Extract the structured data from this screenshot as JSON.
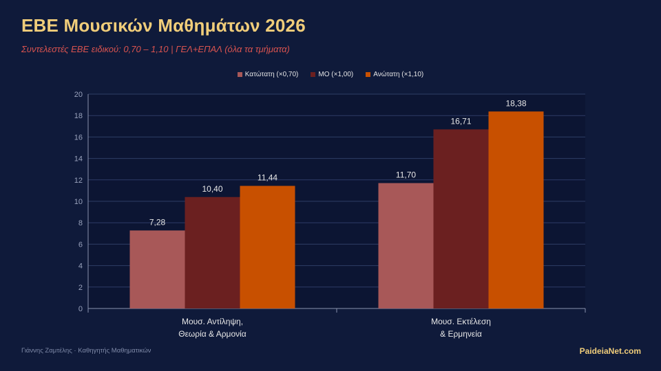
{
  "header": {
    "title": "ΕΒΕ Μουσικών Μαθημάτων 2026",
    "subtitle": "Συντελεστές ΕΒΕ ειδικού: 0,70 – 1,10 | ΓΕΛ+ΕΠΑΛ (όλα τα τμήματα)"
  },
  "footer": {
    "author": "Γιάννης Ζαμτέλης · Καθηγητής Μαθηματικών",
    "brand": "PaideiaNet.com"
  },
  "chart_data": {
    "type": "bar",
    "categories": [
      [
        "Μουσ. Αντίληψη,",
        "Θεωρία & Αρμονία"
      ],
      [
        "Μουσ. Εκτέλεση",
        "& Ερμηνεία"
      ]
    ],
    "series": [
      {
        "name": "Κατώτατη (×0,70)",
        "values": [
          7.28,
          11.7
        ],
        "labels": [
          "7,28",
          "11,70"
        ],
        "color": "#a85858"
      },
      {
        "name": "ΜΟ (×1,00)",
        "values": [
          10.4,
          16.71
        ],
        "labels": [
          "10,40",
          "16,71"
        ],
        "color": "#6b2020"
      },
      {
        "name": "Ανώτατη (×1,10)",
        "values": [
          11.44,
          18.38
        ],
        "labels": [
          "11,44",
          "18,38"
        ],
        "color": "#c85000"
      }
    ],
    "yticks": [
      "0",
      "2",
      "4",
      "6",
      "8",
      "10",
      "12",
      "14",
      "16",
      "18",
      "20"
    ],
    "ylim": [
      0,
      20
    ],
    "grid": true,
    "legend_position": "top-center",
    "colors": {
      "grid": "#2e3d66",
      "plot_bg": "#0c1533",
      "tick_text": "#9aa3bd",
      "label_text": "#e8e8e8"
    }
  }
}
